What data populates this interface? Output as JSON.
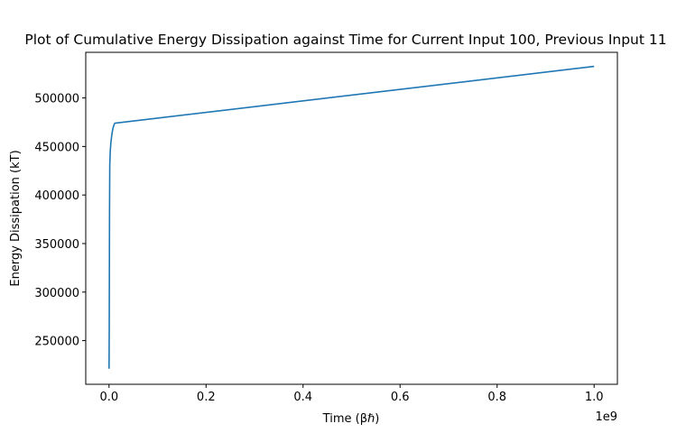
{
  "chart_data": {
    "type": "line",
    "title": "Plot of Cumulative Energy Dissipation against Time for Current Input 100, Previous Input 11",
    "xlabel": "Time (βℏ)",
    "ylabel": "Energy Dissipation (kT)",
    "x_offset_label": "1e9",
    "xlim": [
      -48000000,
      1048000000
    ],
    "ylim": [
      205000,
      547000
    ],
    "x_ticks": [
      0.0,
      0.2,
      0.4,
      0.6,
      0.8,
      1.0
    ],
    "x_tick_labels": [
      "0.0",
      "0.2",
      "0.4",
      "0.6",
      "0.8",
      "1.0"
    ],
    "y_ticks": [
      250000,
      300000,
      350000,
      400000,
      450000,
      500000
    ],
    "y_tick_labels": [
      "250000",
      "300000",
      "350000",
      "400000",
      "450000",
      "500000"
    ],
    "grid": false,
    "series": [
      {
        "color": "#1f77b4",
        "x": [
          0,
          400000,
          1000000,
          1500000,
          2500000,
          4000000,
          6000000,
          8000000,
          10000000,
          12000000,
          1000000000
        ],
        "y": [
          221000,
          260000,
          380000,
          430000,
          445000,
          455000,
          463000,
          468500,
          472000,
          474000,
          532500
        ]
      }
    ]
  }
}
